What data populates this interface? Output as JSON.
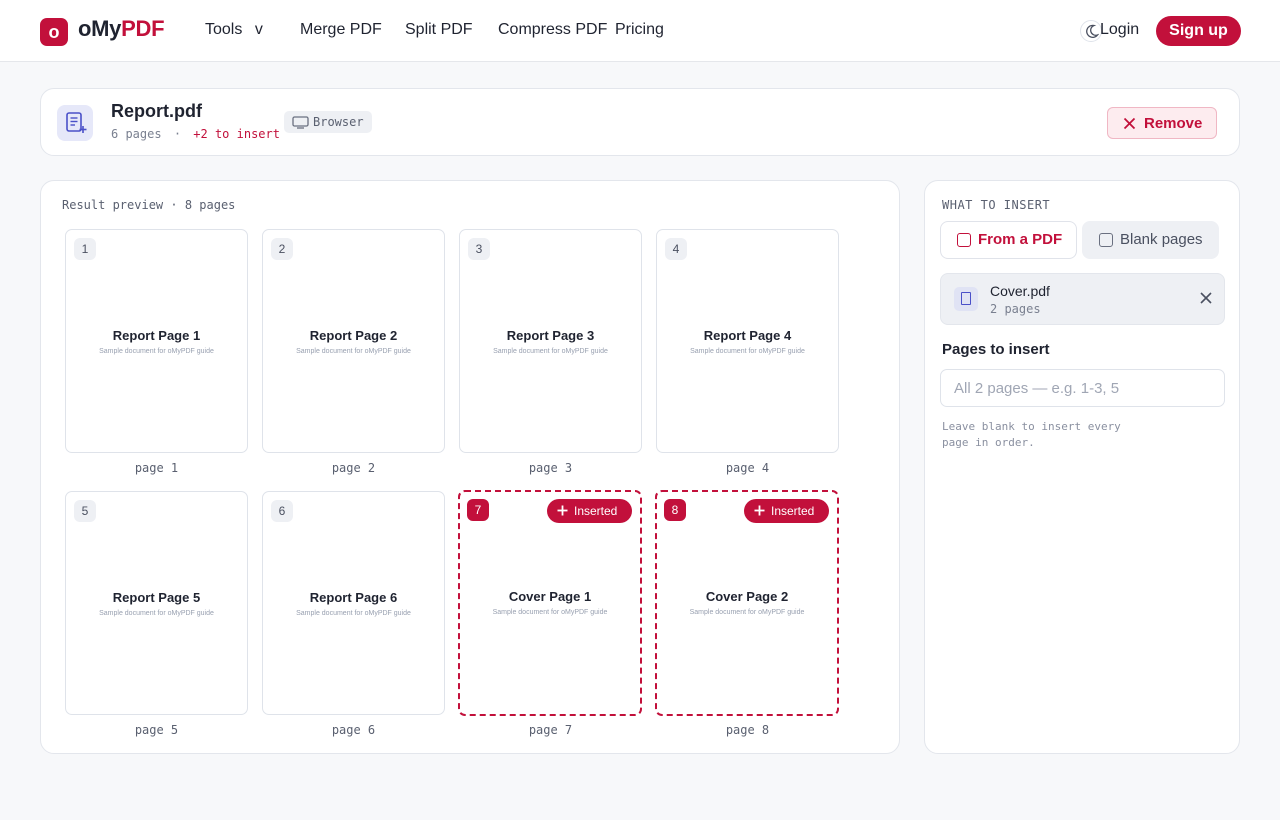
{
  "brand": {
    "logo_letter": "o",
    "name_part1": "oMy",
    "name_part2": "PDF"
  },
  "nav": {
    "tools": "Tools",
    "tools_caret": "v",
    "merge": "Merge PDF",
    "split": "Split PDF",
    "compress": "Compress PDF",
    "pricing": "Pricing",
    "login": "Login",
    "signup": "Sign up"
  },
  "file": {
    "name": "Report.pdf",
    "pages": "6 pages",
    "separator": "·",
    "insert_count": "+2 to insert",
    "source": "Browser",
    "remove_label": "Remove"
  },
  "preview": {
    "caption": "Result preview · 8 pages",
    "pages": [
      {
        "num": "1",
        "title": "Report Page 1",
        "subtitle": "Sample document for oMyPDF guide",
        "label": "page 1",
        "inserted": false
      },
      {
        "num": "2",
        "title": "Report Page 2",
        "subtitle": "Sample document for oMyPDF guide",
        "label": "page 2",
        "inserted": false
      },
      {
        "num": "3",
        "title": "Report Page 3",
        "subtitle": "Sample document for oMyPDF guide",
        "label": "page 3",
        "inserted": false
      },
      {
        "num": "4",
        "title": "Report Page 4",
        "subtitle": "Sample document for oMyPDF guide",
        "label": "page 4",
        "inserted": false
      },
      {
        "num": "5",
        "title": "Report Page 5",
        "subtitle": "Sample document for oMyPDF guide",
        "label": "page 5",
        "inserted": false
      },
      {
        "num": "6",
        "title": "Report Page 6",
        "subtitle": "Sample document for oMyPDF guide",
        "label": "page 6",
        "inserted": false
      },
      {
        "num": "7",
        "title": "Cover Page 1",
        "subtitle": "Sample document for oMyPDF guide",
        "label": "page 7",
        "inserted": true,
        "badge": "Inserted"
      },
      {
        "num": "8",
        "title": "Cover Page 2",
        "subtitle": "Sample document for oMyPDF guide",
        "label": "page 8",
        "inserted": true,
        "badge": "Inserted"
      }
    ]
  },
  "insert_panel": {
    "caption": "WHAT TO INSERT",
    "option_pdf": "From a PDF",
    "option_blank": "Blank pages",
    "selected_option": "From a PDF",
    "source_file": {
      "name": "Cover.pdf",
      "pages": "2 pages"
    },
    "pages_label": "Pages to insert",
    "pages_placeholder": "All 2 pages — e.g. 1-3, 5",
    "pages_value": "",
    "hint": "Leave blank to insert every page in order."
  },
  "colors": {
    "accent": "#c2103b",
    "background": "#f7f8fa",
    "file_icon_tint": "#4a50c8"
  }
}
